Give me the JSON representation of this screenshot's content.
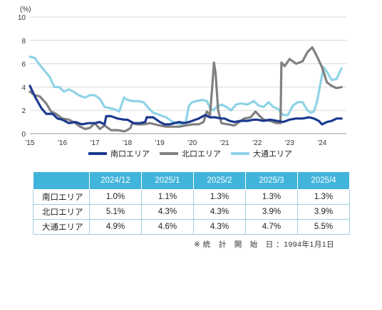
{
  "chart_data": {
    "type": "line",
    "ylabel": "(%)",
    "ylim": [
      0,
      10
    ],
    "yticks": [
      0,
      2,
      4,
      6,
      8,
      10
    ],
    "xlim": [
      2015.0,
      2024.75
    ],
    "xtick_positions": [
      2015,
      2016,
      2017,
      2018,
      2019,
      2020,
      2021,
      2022,
      2023,
      2024
    ],
    "xtick_labels": [
      "'15",
      "'16",
      "'17",
      "'18",
      "'19",
      "'20",
      "'21",
      "'22",
      "'23",
      "'24"
    ],
    "grid": "horizontal",
    "legend_position": "bottom",
    "series": [
      {
        "name": "南口エリア",
        "color": "#1b3a8f",
        "points": [
          [
            2015.0,
            4.1
          ],
          [
            2015.15,
            3.2
          ],
          [
            2015.35,
            2.2
          ],
          [
            2015.5,
            1.7
          ],
          [
            2015.7,
            1.7
          ],
          [
            2015.85,
            1.3
          ],
          [
            2016.0,
            1.2
          ],
          [
            2016.2,
            0.9
          ],
          [
            2016.4,
            1.0
          ],
          [
            2016.6,
            0.8
          ],
          [
            2016.8,
            0.9
          ],
          [
            2017.0,
            0.9
          ],
          [
            2017.15,
            1.0
          ],
          [
            2017.3,
            0.8
          ],
          [
            2017.35,
            1.5
          ],
          [
            2017.5,
            1.5
          ],
          [
            2017.7,
            1.3
          ],
          [
            2017.9,
            1.2
          ],
          [
            2018.0,
            1.2
          ],
          [
            2018.2,
            0.9
          ],
          [
            2018.4,
            0.9
          ],
          [
            2018.55,
            1.0
          ],
          [
            2018.6,
            1.4
          ],
          [
            2018.8,
            1.4
          ],
          [
            2019.0,
            1.0
          ],
          [
            2019.15,
            0.8
          ],
          [
            2019.3,
            0.8
          ],
          [
            2019.45,
            0.9
          ],
          [
            2019.6,
            1.0
          ],
          [
            2019.75,
            0.9
          ],
          [
            2019.9,
            1.0
          ],
          [
            2020.0,
            1.1
          ],
          [
            2020.2,
            1.3
          ],
          [
            2020.4,
            1.6
          ],
          [
            2020.55,
            1.4
          ],
          [
            2020.7,
            1.4
          ],
          [
            2020.9,
            1.3
          ],
          [
            2021.0,
            1.3
          ],
          [
            2021.15,
            1.1
          ],
          [
            2021.3,
            1.0
          ],
          [
            2021.5,
            1.1
          ],
          [
            2021.7,
            1.1
          ],
          [
            2021.9,
            1.2
          ],
          [
            2022.0,
            1.2
          ],
          [
            2022.2,
            1.1
          ],
          [
            2022.4,
            1.2
          ],
          [
            2022.6,
            1.1
          ],
          [
            2022.8,
            1.0
          ],
          [
            2023.0,
            1.2
          ],
          [
            2023.2,
            1.3
          ],
          [
            2023.4,
            1.3
          ],
          [
            2023.6,
            1.4
          ],
          [
            2023.75,
            1.3
          ],
          [
            2023.9,
            1.1
          ],
          [
            2024.0,
            0.8
          ],
          [
            2024.15,
            1.0
          ],
          [
            2024.3,
            1.1
          ],
          [
            2024.45,
            1.3
          ],
          [
            2024.6,
            1.3
          ]
        ]
      },
      {
        "name": "北口エリア",
        "color": "#808080",
        "points": [
          [
            2015.0,
            3.6
          ],
          [
            2015.15,
            3.3
          ],
          [
            2015.3,
            3.2
          ],
          [
            2015.5,
            2.6
          ],
          [
            2015.65,
            1.9
          ],
          [
            2015.8,
            1.7
          ],
          [
            2016.0,
            1.3
          ],
          [
            2016.2,
            1.2
          ],
          [
            2016.4,
            0.9
          ],
          [
            2016.55,
            0.6
          ],
          [
            2016.7,
            0.4
          ],
          [
            2016.85,
            0.5
          ],
          [
            2017.0,
            0.9
          ],
          [
            2017.15,
            0.4
          ],
          [
            2017.3,
            0.7
          ],
          [
            2017.5,
            0.3
          ],
          [
            2017.7,
            0.3
          ],
          [
            2017.9,
            0.2
          ],
          [
            2018.0,
            0.3
          ],
          [
            2018.1,
            0.5
          ],
          [
            2018.15,
            0.9
          ],
          [
            2018.3,
            0.8
          ],
          [
            2018.5,
            0.8
          ],
          [
            2018.7,
            0.9
          ],
          [
            2019.0,
            0.7
          ],
          [
            2019.2,
            0.6
          ],
          [
            2019.4,
            0.6
          ],
          [
            2019.6,
            0.6
          ],
          [
            2019.8,
            0.7
          ],
          [
            2020.0,
            0.8
          ],
          [
            2020.2,
            0.8
          ],
          [
            2020.35,
            1.0
          ],
          [
            2020.45,
            1.9
          ],
          [
            2020.55,
            1.6
          ],
          [
            2020.62,
            4.1
          ],
          [
            2020.67,
            6.1
          ],
          [
            2020.72,
            5.2
          ],
          [
            2020.8,
            2.0
          ],
          [
            2020.9,
            0.9
          ],
          [
            2021.1,
            0.8
          ],
          [
            2021.3,
            0.7
          ],
          [
            2021.45,
            1.0
          ],
          [
            2021.6,
            1.3
          ],
          [
            2021.8,
            1.4
          ],
          [
            2021.95,
            1.9
          ],
          [
            2022.05,
            1.6
          ],
          [
            2022.2,
            1.2
          ],
          [
            2022.4,
            1.1
          ],
          [
            2022.6,
            0.9
          ],
          [
            2022.72,
            0.9
          ],
          [
            2022.75,
            6.1
          ],
          [
            2022.85,
            5.8
          ],
          [
            2023.0,
            6.4
          ],
          [
            2023.2,
            6.0
          ],
          [
            2023.4,
            6.2
          ],
          [
            2023.55,
            7.0
          ],
          [
            2023.7,
            7.4
          ],
          [
            2023.85,
            6.6
          ],
          [
            2024.0,
            5.7
          ],
          [
            2024.15,
            4.4
          ],
          [
            2024.3,
            4.1
          ],
          [
            2024.45,
            3.9
          ],
          [
            2024.6,
            4.0
          ]
        ]
      },
      {
        "name": "大通エリア",
        "color": "#8fd3e8",
        "points": [
          [
            2015.0,
            6.6
          ],
          [
            2015.15,
            6.5
          ],
          [
            2015.3,
            5.9
          ],
          [
            2015.45,
            5.4
          ],
          [
            2015.6,
            4.9
          ],
          [
            2015.75,
            4.0
          ],
          [
            2015.9,
            4.0
          ],
          [
            2016.05,
            3.6
          ],
          [
            2016.2,
            3.8
          ],
          [
            2016.35,
            3.6
          ],
          [
            2016.5,
            3.3
          ],
          [
            2016.7,
            3.1
          ],
          [
            2016.85,
            3.3
          ],
          [
            2017.0,
            3.3
          ],
          [
            2017.15,
            3.0
          ],
          [
            2017.3,
            2.3
          ],
          [
            2017.45,
            2.2
          ],
          [
            2017.6,
            2.1
          ],
          [
            2017.75,
            1.9
          ],
          [
            2017.9,
            3.1
          ],
          [
            2018.0,
            2.9
          ],
          [
            2018.15,
            2.8
          ],
          [
            2018.3,
            2.8
          ],
          [
            2018.5,
            2.7
          ],
          [
            2018.65,
            2.2
          ],
          [
            2018.8,
            1.8
          ],
          [
            2019.0,
            1.6
          ],
          [
            2019.2,
            1.4
          ],
          [
            2019.35,
            1.1
          ],
          [
            2019.5,
            0.9
          ],
          [
            2019.65,
            0.8
          ],
          [
            2019.8,
            1.0
          ],
          [
            2019.9,
            2.4
          ],
          [
            2020.0,
            2.7
          ],
          [
            2020.15,
            2.8
          ],
          [
            2020.3,
            2.9
          ],
          [
            2020.45,
            2.8
          ],
          [
            2020.55,
            2.2
          ],
          [
            2020.65,
            2.0
          ],
          [
            2020.75,
            2.3
          ],
          [
            2020.9,
            2.5
          ],
          [
            2021.05,
            2.3
          ],
          [
            2021.2,
            2.0
          ],
          [
            2021.35,
            2.5
          ],
          [
            2021.5,
            2.6
          ],
          [
            2021.7,
            2.5
          ],
          [
            2021.9,
            2.8
          ],
          [
            2022.05,
            2.4
          ],
          [
            2022.2,
            2.3
          ],
          [
            2022.35,
            2.7
          ],
          [
            2022.5,
            2.3
          ],
          [
            2022.65,
            2.1
          ],
          [
            2022.8,
            1.6
          ],
          [
            2022.95,
            1.6
          ],
          [
            2023.1,
            2.4
          ],
          [
            2023.25,
            2.7
          ],
          [
            2023.4,
            2.7
          ],
          [
            2023.55,
            2.0
          ],
          [
            2023.65,
            1.8
          ],
          [
            2023.75,
            1.9
          ],
          [
            2023.85,
            2.8
          ],
          [
            2023.95,
            4.3
          ],
          [
            2024.05,
            5.7
          ],
          [
            2024.15,
            5.3
          ],
          [
            2024.3,
            4.6
          ],
          [
            2024.45,
            4.7
          ],
          [
            2024.6,
            5.6
          ]
        ]
      }
    ]
  },
  "table": {
    "headers": [
      "2024/12",
      "2025/1",
      "2025/2",
      "2025/3",
      "2025/4"
    ],
    "rows": [
      {
        "label": "南口エリア",
        "values": [
          "1.0%",
          "1.1%",
          "1.3%",
          "1.3%",
          "1.3%"
        ]
      },
      {
        "label": "北口エリア",
        "values": [
          "5.1%",
          "4.3%",
          "4.3%",
          "3.9%",
          "3.9%"
        ]
      },
      {
        "label": "大通エリア",
        "values": [
          "4.9%",
          "4.6%",
          "4.3%",
          "4.7%",
          "5.5%"
        ]
      }
    ]
  },
  "footnote": "※ 統　計　開　始　日 ：1994年1月1日"
}
